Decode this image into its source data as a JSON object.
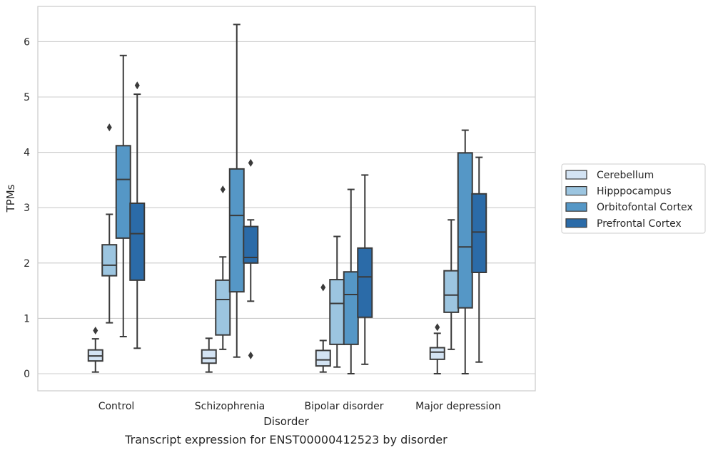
{
  "chart_data": {
    "type": "boxplot",
    "title": "",
    "caption": "Transcript expression for ENST00000412523 by disorder",
    "xlabel": "Disorder",
    "ylabel": "TPMs",
    "ylim": [
      -0.3,
      6.6
    ],
    "yticks": [
      0,
      1,
      2,
      3,
      4,
      5,
      6
    ],
    "grid": "horizontal",
    "legend_position": "right",
    "categories": [
      "Control",
      "Schizophrenia",
      "Bipolar disorder",
      "Major depression"
    ],
    "series": [
      {
        "name": "Cerebellum",
        "color": "#d3e3f3",
        "boxes": [
          {
            "whisker_low": 0.03,
            "q1": 0.23,
            "median": 0.32,
            "q3": 0.43,
            "whisker_high": 0.63,
            "outliers": [
              0.78
            ]
          },
          {
            "whisker_low": 0.03,
            "q1": 0.19,
            "median": 0.28,
            "q3": 0.43,
            "whisker_high": 0.64,
            "outliers": []
          },
          {
            "whisker_low": 0.03,
            "q1": 0.14,
            "median": 0.25,
            "q3": 0.42,
            "whisker_high": 0.6,
            "outliers": [
              1.56
            ]
          },
          {
            "whisker_low": 0.0,
            "q1": 0.26,
            "median": 0.39,
            "q3": 0.47,
            "whisker_high": 0.73,
            "outliers": [
              0.84
            ]
          }
        ]
      },
      {
        "name": "Hipppocampus",
        "color": "#9cc5e0",
        "boxes": [
          {
            "whisker_low": 0.92,
            "q1": 1.77,
            "median": 1.96,
            "q3": 2.33,
            "whisker_high": 2.88,
            "outliers": [
              4.45
            ]
          },
          {
            "whisker_low": 0.44,
            "q1": 0.7,
            "median": 1.34,
            "q3": 1.69,
            "whisker_high": 2.11,
            "outliers": [
              3.33
            ]
          },
          {
            "whisker_low": 0.12,
            "q1": 0.53,
            "median": 1.27,
            "q3": 1.7,
            "whisker_high": 2.48,
            "outliers": []
          },
          {
            "whisker_low": 0.44,
            "q1": 1.11,
            "median": 1.42,
            "q3": 1.86,
            "whisker_high": 2.78,
            "outliers": []
          }
        ]
      },
      {
        "name": "Orbitofontal Cortex",
        "color": "#5597c6",
        "boxes": [
          {
            "whisker_low": 0.67,
            "q1": 2.45,
            "median": 3.51,
            "q3": 4.12,
            "whisker_high": 5.75,
            "outliers": []
          },
          {
            "whisker_low": 0.3,
            "q1": 1.48,
            "median": 2.86,
            "q3": 3.7,
            "whisker_high": 6.31,
            "outliers": []
          },
          {
            "whisker_low": 0.0,
            "q1": 0.53,
            "median": 1.43,
            "q3": 1.84,
            "whisker_high": 3.33,
            "outliers": []
          },
          {
            "whisker_low": 0.0,
            "q1": 1.19,
            "median": 2.29,
            "q3": 3.99,
            "whisker_high": 4.4,
            "outliers": []
          }
        ]
      },
      {
        "name": "Prefrontal Cortex",
        "color": "#2b6ba8",
        "boxes": [
          {
            "whisker_low": 0.46,
            "q1": 1.69,
            "median": 2.53,
            "q3": 3.08,
            "whisker_high": 5.05,
            "outliers": [
              5.21
            ]
          },
          {
            "whisker_low": 1.31,
            "q1": 2.0,
            "median": 2.1,
            "q3": 2.66,
            "whisker_high": 2.78,
            "outliers": [
              3.81,
              0.33
            ]
          },
          {
            "whisker_low": 0.17,
            "q1": 1.02,
            "median": 1.75,
            "q3": 2.27,
            "whisker_high": 3.59,
            "outliers": []
          },
          {
            "whisker_low": 0.21,
            "q1": 1.83,
            "median": 2.56,
            "q3": 3.25,
            "whisker_high": 3.91,
            "outliers": []
          }
        ]
      }
    ]
  }
}
